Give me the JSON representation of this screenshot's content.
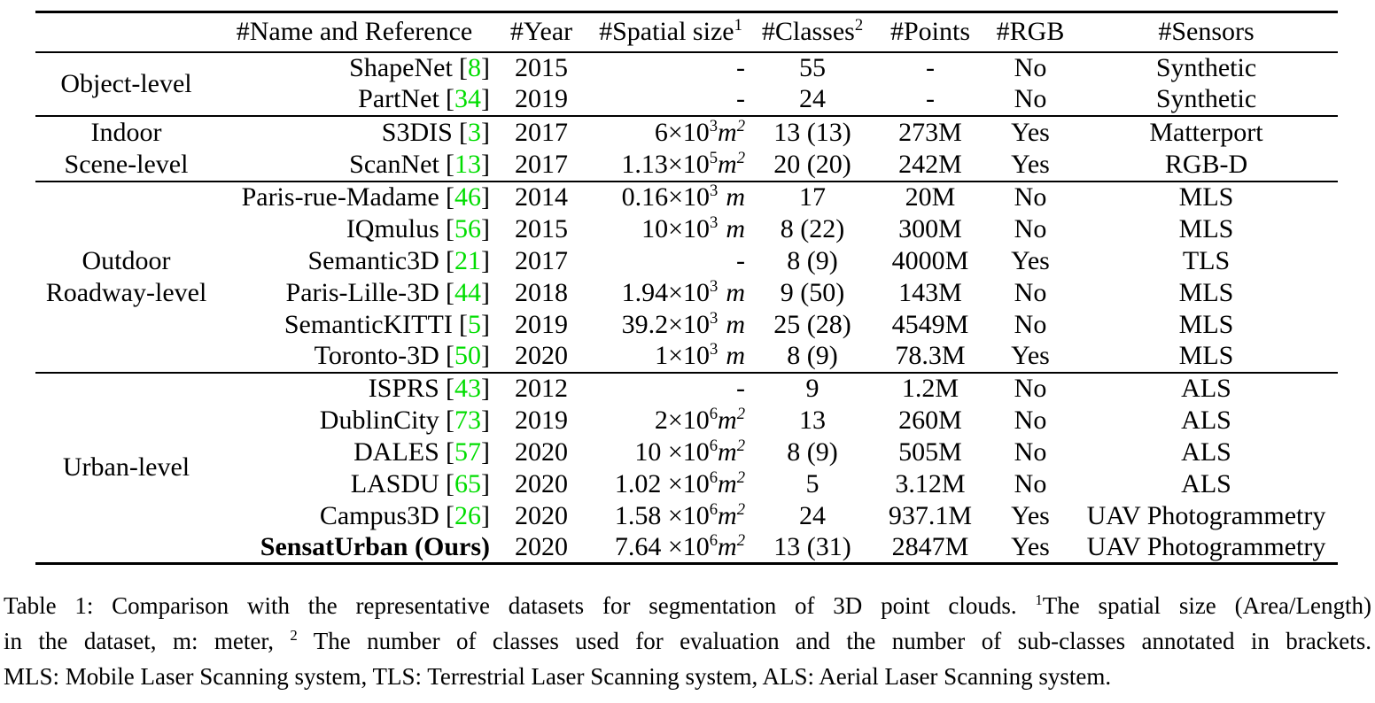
{
  "colors": {
    "reference_green": "#00DD00"
  },
  "table": {
    "ref_open": "[",
    "ref_close": "]",
    "headers": {
      "group": "",
      "name": "#Name and Reference",
      "year": "#Year",
      "spatial": "#Spatial size",
      "spatial_sup": "1",
      "classes": "#Classes",
      "classes_sup": "2",
      "points": "#Points",
      "rgb": "#RGB",
      "sensors": "#Sensors"
    },
    "groups": [
      {
        "lines": [
          "Object-level"
        ]
      },
      {
        "lines": [
          "Indoor",
          "Scene-level"
        ]
      },
      {
        "lines": [
          "Outdoor",
          "Roadway-level"
        ]
      },
      {
        "lines": [
          "Urban-level"
        ]
      }
    ],
    "rows": [
      {
        "name": "ShapeNet",
        "ref": "8",
        "year": "2015",
        "spatial": {
          "pre": "-",
          "exp": "",
          "unit": "",
          "uexp": ""
        },
        "classes": "55",
        "points": "-",
        "rgb": "No",
        "sensors": "Synthetic"
      },
      {
        "name": "PartNet",
        "ref": "34",
        "year": "2019",
        "spatial": {
          "pre": "-",
          "exp": "",
          "unit": "",
          "uexp": ""
        },
        "classes": "24",
        "points": "-",
        "rgb": "No",
        "sensors": "Synthetic"
      },
      {
        "name": "S3DIS",
        "ref": "3",
        "year": "2017",
        "spatial": {
          "pre": "6×10",
          "exp": "3",
          "unit": "m",
          "uexp": "2"
        },
        "classes": "13 (13)",
        "points": "273M",
        "rgb": "Yes",
        "sensors": "Matterport"
      },
      {
        "name": "ScanNet",
        "ref": "13",
        "year": "2017",
        "spatial": {
          "pre": "1.13×10",
          "exp": "5",
          "unit": "m",
          "uexp": "2"
        },
        "classes": "20 (20)",
        "points": "242M",
        "rgb": "Yes",
        "sensors": "RGB-D"
      },
      {
        "name": "Paris-rue-Madame",
        "ref": "46",
        "year": "2014",
        "spatial": {
          "pre": "0.16×10",
          "exp": "3",
          "unit": "m",
          "uexp": ""
        },
        "classes": "17",
        "points": "20M",
        "rgb": "No",
        "sensors": "MLS"
      },
      {
        "name": "IQmulus",
        "ref": "56",
        "year": "2015",
        "spatial": {
          "pre": "10×10",
          "exp": "3",
          "unit": "m",
          "uexp": ""
        },
        "classes": "8 (22)",
        "points": "300M",
        "rgb": "No",
        "sensors": "MLS"
      },
      {
        "name": "Semantic3D",
        "ref": "21",
        "year": "2017",
        "spatial": {
          "pre": "-",
          "exp": "",
          "unit": "",
          "uexp": ""
        },
        "classes": "8 (9)",
        "points": "4000M",
        "rgb": "Yes",
        "sensors": "TLS"
      },
      {
        "name": "Paris-Lille-3D",
        "ref": "44",
        "year": "2018",
        "spatial": {
          "pre": "1.94×10",
          "exp": "3",
          "unit": "m",
          "uexp": ""
        },
        "classes": "9 (50)",
        "points": "143M",
        "rgb": "No",
        "sensors": "MLS"
      },
      {
        "name": "SemanticKITTI",
        "ref": "5",
        "year": "2019",
        "spatial": {
          "pre": "39.2×10",
          "exp": "3",
          "unit": "m",
          "uexp": ""
        },
        "classes": "25 (28)",
        "points": "4549M",
        "rgb": "No",
        "sensors": "MLS"
      },
      {
        "name": "Toronto-3D",
        "ref": "50",
        "year": "2020",
        "spatial": {
          "pre": "1×10",
          "exp": "3",
          "unit": "m",
          "uexp": ""
        },
        "classes": "8 (9)",
        "points": "78.3M",
        "rgb": "Yes",
        "sensors": "MLS"
      },
      {
        "name": "ISPRS",
        "ref": "43",
        "year": "2012",
        "spatial": {
          "pre": "-",
          "exp": "",
          "unit": "",
          "uexp": ""
        },
        "classes": "9",
        "points": "1.2M",
        "rgb": "No",
        "sensors": "ALS"
      },
      {
        "name": "DublinCity",
        "ref": "73",
        "year": "2019",
        "spatial": {
          "pre": "2×10",
          "exp": "6",
          "unit": "m",
          "uexp": "2"
        },
        "classes": "13",
        "points": "260M",
        "rgb": "No",
        "sensors": "ALS"
      },
      {
        "name": "DALES",
        "ref": "57",
        "year": "2020",
        "spatial": {
          "pre": "10 ×10",
          "exp": "6",
          "unit": "m",
          "uexp": "2"
        },
        "classes": "8 (9)",
        "points": "505M",
        "rgb": "No",
        "sensors": "ALS"
      },
      {
        "name": "LASDU",
        "ref": "65",
        "year": "2020",
        "spatial": {
          "pre": "1.02 ×10",
          "exp": "6",
          "unit": "m",
          "uexp": "2"
        },
        "classes": "5",
        "points": "3.12M",
        "rgb": "No",
        "sensors": "ALS"
      },
      {
        "name": "Campus3D",
        "ref": "26",
        "year": "2020",
        "spatial": {
          "pre": "1.58 ×10",
          "exp": "6",
          "unit": "m",
          "uexp": "2"
        },
        "classes": "24",
        "points": "937.1M",
        "rgb": "Yes",
        "sensors": "UAV Photogrammetry"
      },
      {
        "name": "SensatUrban (Ours)",
        "ref": null,
        "year": "2020",
        "spatial": {
          "pre": "7.64 ×10",
          "exp": "6",
          "unit": "m",
          "uexp": "2"
        },
        "classes": "13 (31)",
        "points": "2847M",
        "rgb": "Yes",
        "sensors": "UAV Photogrammetry"
      }
    ]
  },
  "caption": {
    "line1": {
      "a": "Table 1: Comparison with the representative datasets for segmentation of 3D point clouds. ",
      "sup": "1",
      "b": "The spatial size (Area/Length)"
    },
    "line2": {
      "a": "in the dataset, m: meter, ",
      "sup": "2",
      "b": " The number of classes used for evaluation and the number of sub-classes annotated in brackets."
    },
    "line3": "MLS: Mobile Laser Scanning system, TLS: Terrestrial Laser Scanning system, ALS: Aerial Laser Scanning system."
  }
}
